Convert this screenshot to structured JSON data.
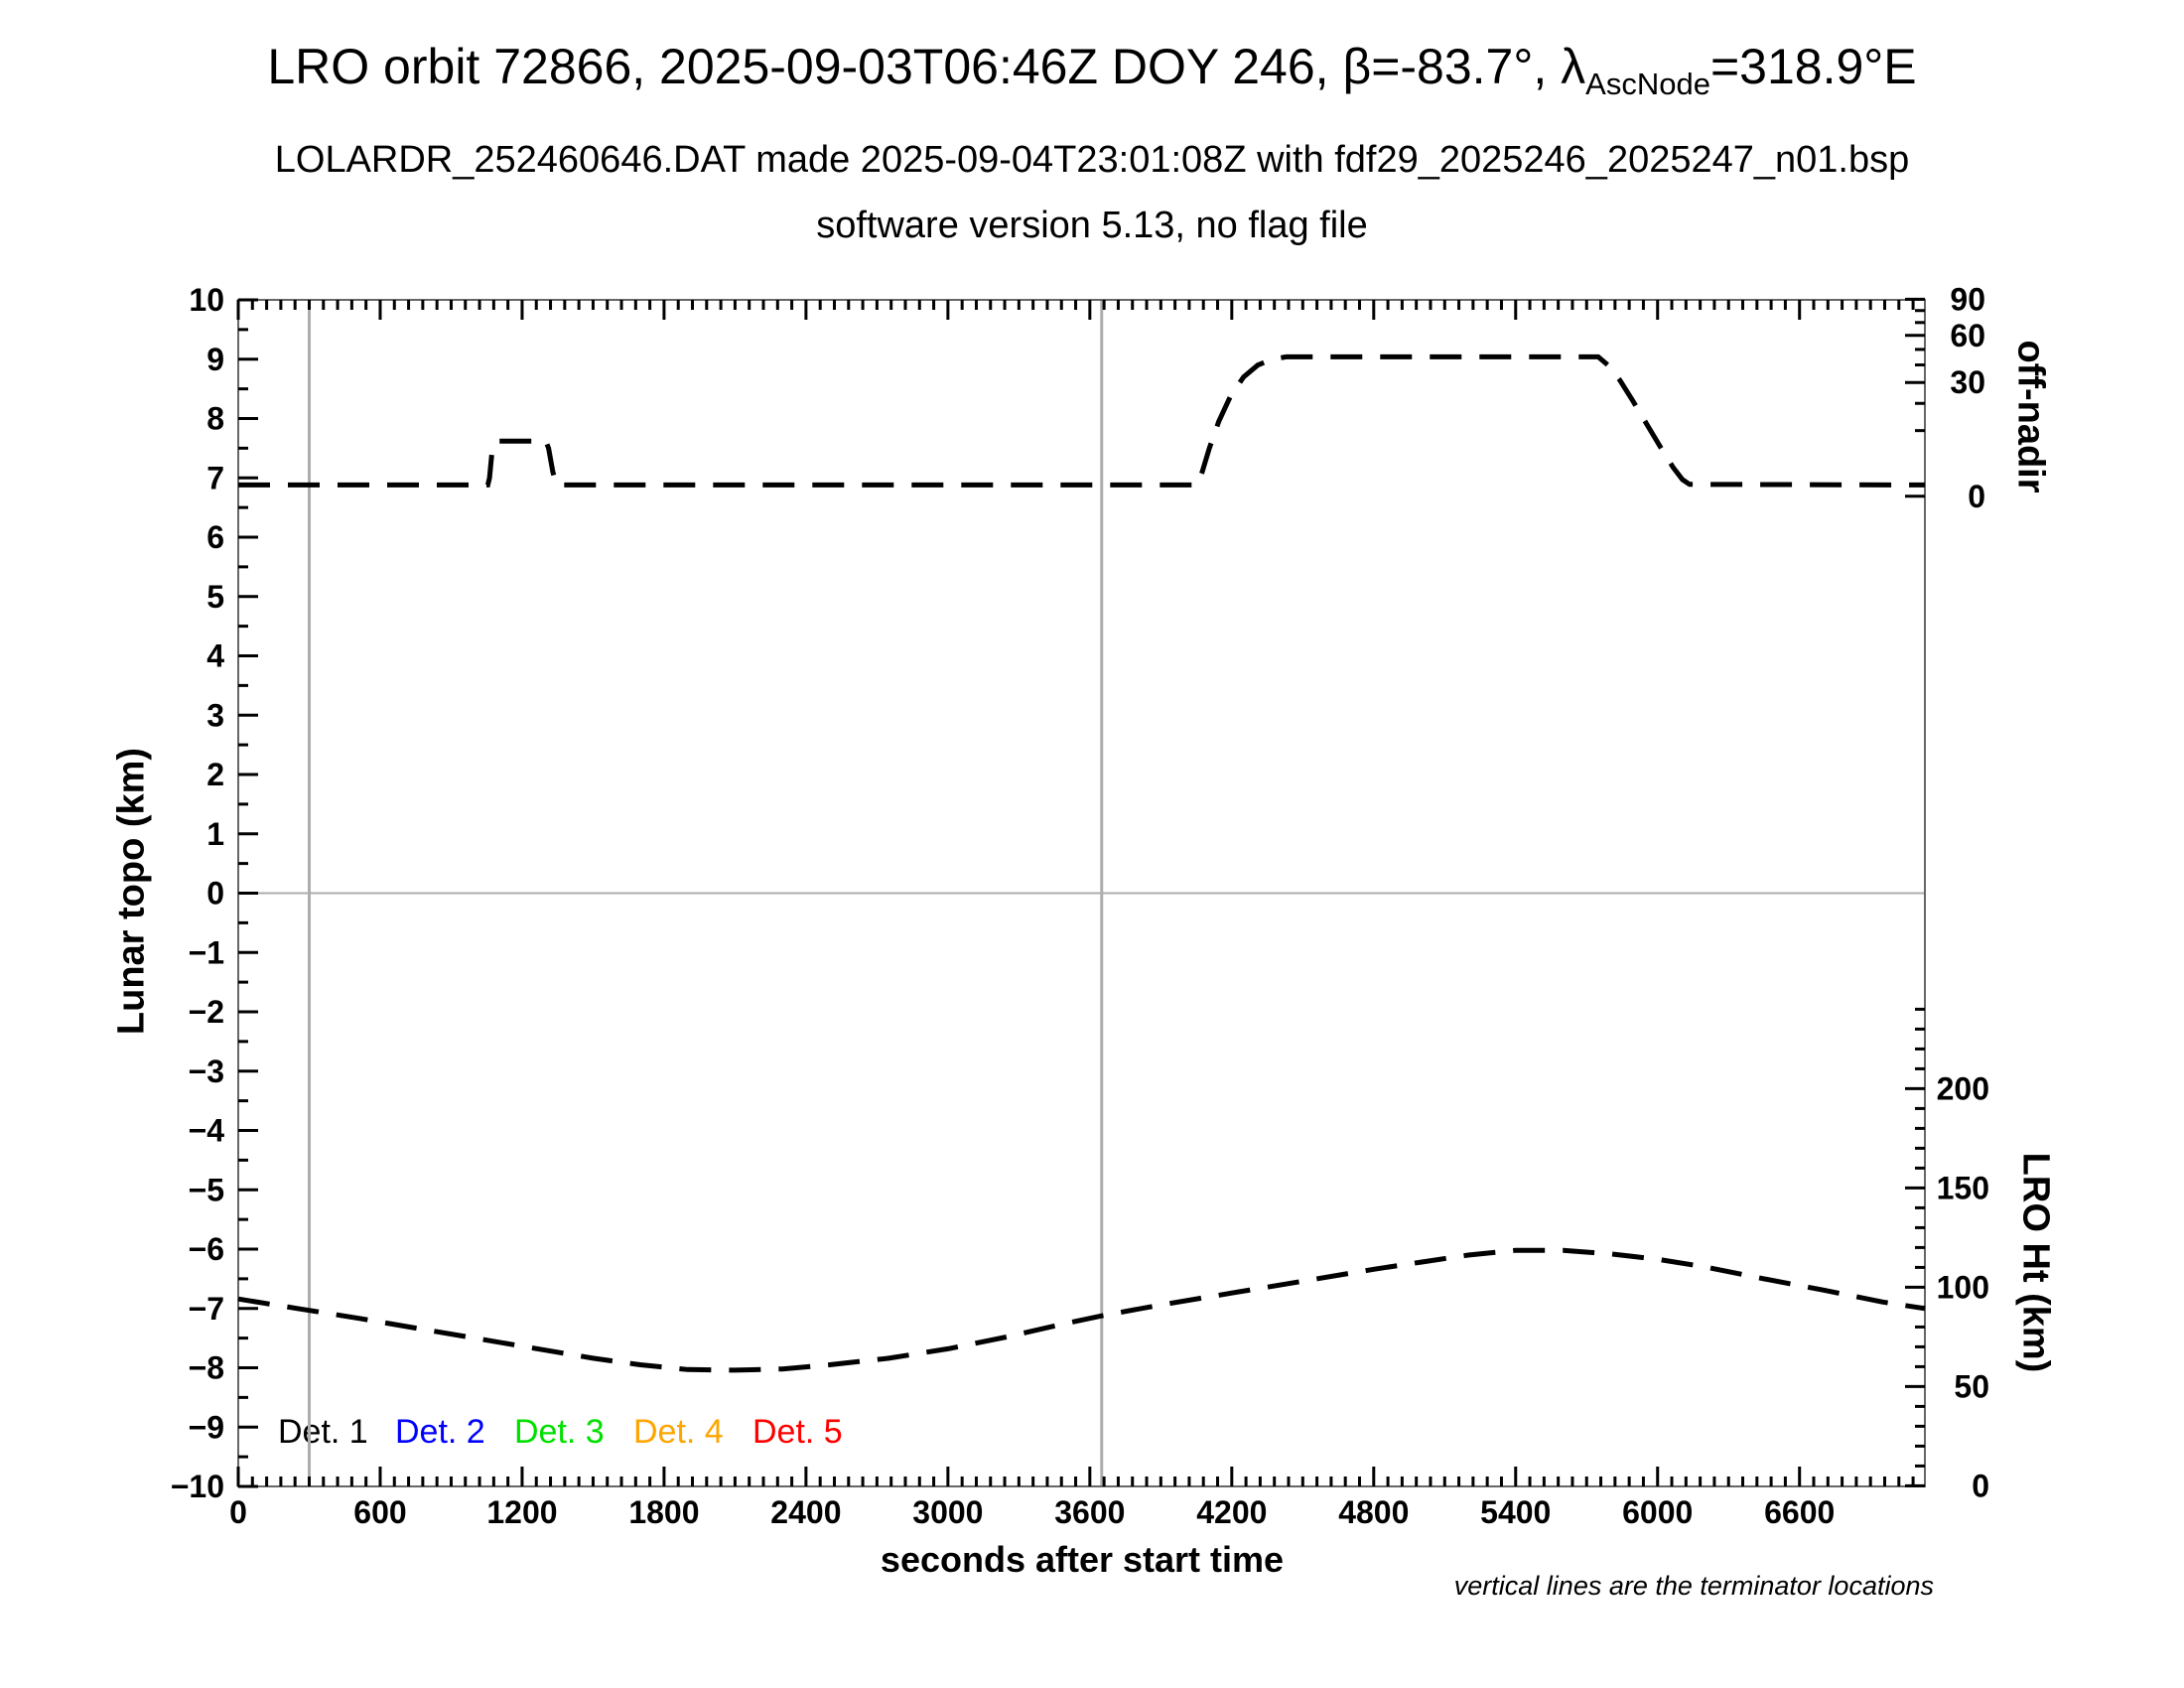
{
  "title": {
    "part1": "LRO orbit 72866, 2025-09-03T06:46Z DOY 246, β=-83.7°, ",
    "lambda": "λ",
    "lambda_sub": "AscNode",
    "part2": "=318.9°E"
  },
  "subtitle_line1": "LOLARDR_252460646.DAT made 2025-09-04T23:01:08Z with fdf29_2025246_2025247_n01.bsp",
  "subtitle_line2": "software version 5.13, no flag file",
  "footnote": "vertical lines are the terminator locations",
  "legend": {
    "items": [
      {
        "label": "Det. 1",
        "color": "#000000"
      },
      {
        "label": "Det. 2",
        "color": "#0000ff"
      },
      {
        "label": "Det. 3",
        "color": "#00e000"
      },
      {
        "label": "Det. 4",
        "color": "#ffa500"
      },
      {
        "label": "Det. 5",
        "color": "#ff0000"
      }
    ]
  },
  "chart_data": {
    "type": "line",
    "xlabel": "seconds after start time",
    "ylabel_left": "Lunar topo (km)",
    "ylabel_right_top": "off-nadir",
    "ylabel_right_bottom": "LRO Ht (km)",
    "xlim": [
      0,
      7130
    ],
    "ylim_left": [
      -10,
      10
    ],
    "x_major_ticks": [
      0,
      600,
      1200,
      1800,
      2400,
      3000,
      3600,
      4200,
      4800,
      5400,
      6000,
      6600
    ],
    "x_minor_step_s": 60,
    "y_left_major_step": 1,
    "y_left_minor_step": 0.5,
    "right_top_axis": {
      "tick_labels": [
        90,
        60,
        30,
        0
      ],
      "minor_ticks": [
        10,
        20,
        40,
        50,
        70,
        80
      ],
      "scale": "sqrt",
      "map_note": "angle t deg drawn at left-axis value 6.69 + 3.32*sqrt(t/90)"
    },
    "right_bottom_axis": {
      "tick_labels": [
        200,
        150,
        100,
        50,
        0
      ],
      "minor_step_km": 10,
      "minor_max_km": 240,
      "map_note": "height km drawn at left-axis value -9.99 + km/29.875"
    },
    "terminator_lines_s": [
      300,
      3650
    ],
    "zero_line": true,
    "line_color": "#000000",
    "grid_color": "#adadad",
    "series": [
      {
        "name": "off-nadir angle",
        "color": "#000000",
        "style": "dashed",
        "points_left_units": [
          [
            0,
            6.88
          ],
          [
            1055,
            6.88
          ],
          [
            1062,
            7.0
          ],
          [
            1072,
            7.4
          ],
          [
            1082,
            7.58
          ],
          [
            1095,
            7.62
          ],
          [
            1300,
            7.62
          ],
          [
            1312,
            7.5
          ],
          [
            1330,
            7.1
          ],
          [
            1345,
            6.88
          ],
          [
            4054,
            6.88
          ],
          [
            4075,
            7.1
          ],
          [
            4105,
            7.5
          ],
          [
            4145,
            7.95
          ],
          [
            4195,
            8.38
          ],
          [
            4250,
            8.7
          ],
          [
            4310,
            8.9
          ],
          [
            4370,
            9.0
          ],
          [
            4430,
            9.04
          ],
          [
            5749,
            9.04
          ],
          [
            5790,
            8.9
          ],
          [
            5840,
            8.65
          ],
          [
            5895,
            8.3
          ],
          [
            5955,
            7.9
          ],
          [
            6015,
            7.5
          ],
          [
            6065,
            7.18
          ],
          [
            6105,
            6.97
          ],
          [
            6135,
            6.89
          ],
          [
            7130,
            6.88
          ]
        ],
        "approx_deg": {
          "baseline": 0.3,
          "bump_peak": 7,
          "plateau": 46
        }
      },
      {
        "name": "LRO height",
        "color": "#000000",
        "style": "dashed",
        "points_left_units": [
          [
            0,
            -6.84
          ],
          [
            250,
            -7.0
          ],
          [
            500,
            -7.16
          ],
          [
            750,
            -7.33
          ],
          [
            1000,
            -7.5
          ],
          [
            1250,
            -7.67
          ],
          [
            1500,
            -7.84
          ],
          [
            1700,
            -7.95
          ],
          [
            1900,
            -8.03
          ],
          [
            2100,
            -8.04
          ],
          [
            2300,
            -8.02
          ],
          [
            2500,
            -7.95
          ],
          [
            2750,
            -7.84
          ],
          [
            3000,
            -7.68
          ],
          [
            3250,
            -7.48
          ],
          [
            3500,
            -7.25
          ],
          [
            3655,
            -7.12
          ],
          [
            3900,
            -6.94
          ],
          [
            4200,
            -6.74
          ],
          [
            4500,
            -6.54
          ],
          [
            4800,
            -6.34
          ],
          [
            5000,
            -6.22
          ],
          [
            5200,
            -6.1
          ],
          [
            5400,
            -6.02
          ],
          [
            5600,
            -6.02
          ],
          [
            5800,
            -6.08
          ],
          [
            6000,
            -6.17
          ],
          [
            6200,
            -6.3
          ],
          [
            6450,
            -6.5
          ],
          [
            6700,
            -6.69
          ],
          [
            6950,
            -6.89
          ],
          [
            7130,
            -7.0
          ]
        ],
        "approx_km": {
          "start": 94,
          "min": 58,
          "max": 119,
          "end": 90
        }
      }
    ]
  }
}
